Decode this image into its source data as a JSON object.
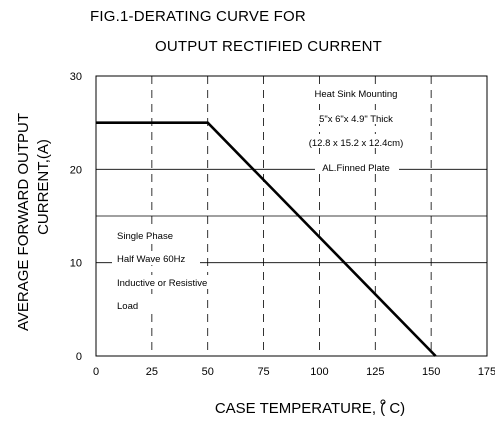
{
  "chart_data": {
    "type": "line",
    "title_line1": "FIG.1-DERATING CURVE FOR",
    "title_line2": "OUTPUT RECTIFIED CURRENT",
    "xlabel": "CASE  TEMPERATURE, (     C)",
    "ylabel_line1": "AVERAGE FORWARD OUTPUT",
    "ylabel_line2": "CURRENT,(A)",
    "xlim": [
      0,
      175
    ],
    "ylim": [
      0,
      30
    ],
    "x_ticks": [
      "0",
      "25",
      "50",
      "75",
      "100",
      "125",
      "150",
      "175"
    ],
    "y_ticks": [
      "0",
      "10",
      "20",
      "30"
    ],
    "grid": true,
    "series": [
      {
        "x": [
          0,
          50,
          152
        ],
        "y": [
          25,
          25,
          0
        ]
      }
    ],
    "annotations": {
      "heat_sink": [
        "Heat Sink Mounting",
        "5\"x 6\"x 4.9\" Thick",
        "(12.8 x 15.2 x 12.4cm)",
        "AL.Finned Plate"
      ],
      "conditions": [
        "Single Phase",
        "Half Wave 60Hz",
        "Inductive or Resistive",
        "Load"
      ]
    }
  }
}
